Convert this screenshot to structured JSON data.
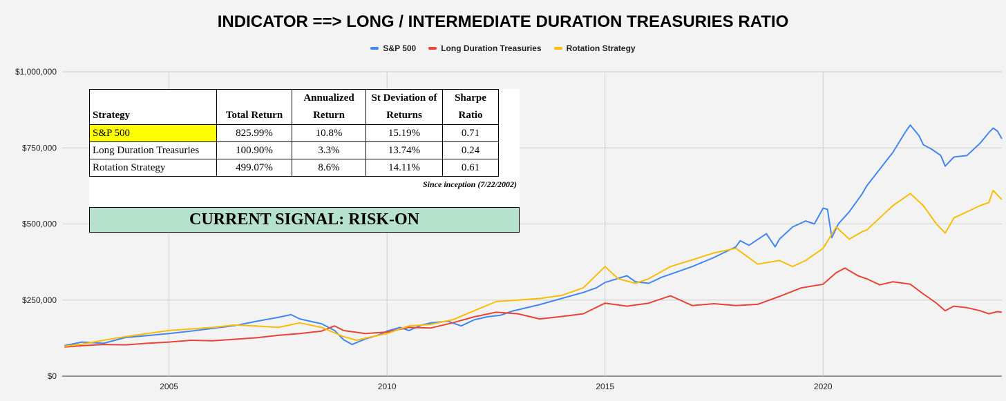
{
  "chart_data": {
    "type": "line",
    "title": "INDICATOR ==> LONG / INTERMEDIATE DURATION TREASURIES RATIO",
    "ylim": [
      0,
      1000000
    ],
    "xlim": [
      2002.55,
      2024.1
    ],
    "y_ticks": [
      0,
      250000,
      500000,
      750000,
      1000000
    ],
    "y_tick_labels": [
      "$0",
      "$250,000",
      "$500,000",
      "$750,000",
      "$1,000,000"
    ],
    "x_ticks": [
      2005,
      2010,
      2015,
      2020
    ],
    "x_tick_labels": [
      "2005",
      "2010",
      "2015",
      "2020"
    ],
    "grid": true,
    "legend_position": "top-center",
    "series": [
      {
        "name": "S&P 500",
        "color": "#4285f4",
        "points": [
          [
            2002.6,
            100000
          ],
          [
            2003.0,
            112000
          ],
          [
            2003.5,
            108000
          ],
          [
            2004.0,
            127000
          ],
          [
            2004.5,
            133000
          ],
          [
            2005.0,
            140000
          ],
          [
            2005.5,
            148000
          ],
          [
            2006.0,
            157000
          ],
          [
            2006.5,
            166000
          ],
          [
            2007.0,
            180000
          ],
          [
            2007.5,
            193000
          ],
          [
            2007.8,
            202000
          ],
          [
            2008.0,
            188000
          ],
          [
            2008.5,
            172000
          ],
          [
            2008.8,
            150000
          ],
          [
            2009.0,
            120000
          ],
          [
            2009.2,
            104000
          ],
          [
            2009.5,
            122000
          ],
          [
            2009.8,
            135000
          ],
          [
            2010.0,
            148000
          ],
          [
            2010.3,
            160000
          ],
          [
            2010.5,
            150000
          ],
          [
            2010.8,
            168000
          ],
          [
            2011.0,
            175000
          ],
          [
            2011.4,
            180000
          ],
          [
            2011.7,
            165000
          ],
          [
            2012.0,
            185000
          ],
          [
            2012.3,
            195000
          ],
          [
            2012.6,
            200000
          ],
          [
            2012.9,
            215000
          ],
          [
            2013.0,
            218000
          ],
          [
            2013.5,
            235000
          ],
          [
            2014.0,
            255000
          ],
          [
            2014.5,
            275000
          ],
          [
            2014.8,
            290000
          ],
          [
            2015.0,
            308000
          ],
          [
            2015.5,
            330000
          ],
          [
            2015.7,
            310000
          ],
          [
            2016.0,
            305000
          ],
          [
            2016.3,
            325000
          ],
          [
            2016.6,
            340000
          ],
          [
            2017.0,
            360000
          ],
          [
            2017.5,
            390000
          ],
          [
            2018.0,
            425000
          ],
          [
            2018.1,
            445000
          ],
          [
            2018.3,
            430000
          ],
          [
            2018.7,
            468000
          ],
          [
            2018.9,
            425000
          ],
          [
            2019.0,
            450000
          ],
          [
            2019.3,
            490000
          ],
          [
            2019.6,
            510000
          ],
          [
            2019.8,
            500000
          ],
          [
            2020.0,
            552000
          ],
          [
            2020.1,
            548000
          ],
          [
            2020.2,
            455000
          ],
          [
            2020.35,
            500000
          ],
          [
            2020.6,
            540000
          ],
          [
            2020.9,
            600000
          ],
          [
            2021.0,
            625000
          ],
          [
            2021.3,
            680000
          ],
          [
            2021.6,
            735000
          ],
          [
            2021.9,
            805000
          ],
          [
            2022.0,
            825000
          ],
          [
            2022.2,
            790000
          ],
          [
            2022.3,
            760000
          ],
          [
            2022.5,
            745000
          ],
          [
            2022.7,
            725000
          ],
          [
            2022.8,
            690000
          ],
          [
            2023.0,
            720000
          ],
          [
            2023.3,
            725000
          ],
          [
            2023.6,
            765000
          ],
          [
            2023.8,
            800000
          ],
          [
            2023.9,
            815000
          ],
          [
            2024.0,
            805000
          ],
          [
            2024.1,
            780000
          ]
        ]
      },
      {
        "name": "Long Duration Treasuries",
        "color": "#ea4335",
        "points": [
          [
            2002.6,
            96000
          ],
          [
            2003.0,
            100000
          ],
          [
            2003.5,
            104000
          ],
          [
            2004.0,
            103000
          ],
          [
            2004.5,
            108000
          ],
          [
            2005.0,
            112000
          ],
          [
            2005.5,
            118000
          ],
          [
            2006.0,
            116000
          ],
          [
            2006.5,
            121000
          ],
          [
            2007.0,
            126000
          ],
          [
            2007.5,
            134000
          ],
          [
            2008.0,
            140000
          ],
          [
            2008.5,
            148000
          ],
          [
            2008.8,
            165000
          ],
          [
            2009.0,
            150000
          ],
          [
            2009.5,
            140000
          ],
          [
            2010.0,
            145000
          ],
          [
            2010.5,
            160000
          ],
          [
            2011.0,
            158000
          ],
          [
            2011.5,
            175000
          ],
          [
            2012.0,
            195000
          ],
          [
            2012.5,
            210000
          ],
          [
            2013.0,
            205000
          ],
          [
            2013.5,
            188000
          ],
          [
            2014.0,
            196000
          ],
          [
            2014.5,
            205000
          ],
          [
            2015.0,
            240000
          ],
          [
            2015.5,
            230000
          ],
          [
            2016.0,
            240000
          ],
          [
            2016.5,
            264000
          ],
          [
            2017.0,
            232000
          ],
          [
            2017.5,
            238000
          ],
          [
            2018.0,
            232000
          ],
          [
            2018.5,
            236000
          ],
          [
            2019.0,
            262000
          ],
          [
            2019.5,
            290000
          ],
          [
            2020.0,
            302000
          ],
          [
            2020.3,
            340000
          ],
          [
            2020.5,
            355000
          ],
          [
            2020.8,
            330000
          ],
          [
            2021.0,
            320000
          ],
          [
            2021.3,
            300000
          ],
          [
            2021.6,
            310000
          ],
          [
            2022.0,
            302000
          ],
          [
            2022.3,
            270000
          ],
          [
            2022.6,
            240000
          ],
          [
            2022.8,
            215000
          ],
          [
            2023.0,
            230000
          ],
          [
            2023.3,
            225000
          ],
          [
            2023.6,
            215000
          ],
          [
            2023.8,
            205000
          ],
          [
            2024.0,
            212000
          ],
          [
            2024.1,
            210000
          ]
        ]
      },
      {
        "name": "Rotation Strategy",
        "color": "#fbbc04",
        "points": [
          [
            2002.6,
            98000
          ],
          [
            2003.0,
            105000
          ],
          [
            2003.5,
            118000
          ],
          [
            2004.0,
            130000
          ],
          [
            2004.5,
            140000
          ],
          [
            2005.0,
            150000
          ],
          [
            2005.5,
            155000
          ],
          [
            2006.0,
            160000
          ],
          [
            2006.5,
            168000
          ],
          [
            2007.0,
            165000
          ],
          [
            2007.5,
            160000
          ],
          [
            2008.0,
            175000
          ],
          [
            2008.5,
            160000
          ],
          [
            2009.0,
            130000
          ],
          [
            2009.3,
            118000
          ],
          [
            2009.6,
            128000
          ],
          [
            2010.0,
            140000
          ],
          [
            2010.5,
            165000
          ],
          [
            2011.0,
            170000
          ],
          [
            2011.5,
            185000
          ],
          [
            2012.0,
            215000
          ],
          [
            2012.5,
            245000
          ],
          [
            2013.0,
            250000
          ],
          [
            2013.5,
            255000
          ],
          [
            2014.0,
            265000
          ],
          [
            2014.5,
            290000
          ],
          [
            2015.0,
            360000
          ],
          [
            2015.3,
            320000
          ],
          [
            2015.7,
            305000
          ],
          [
            2016.0,
            320000
          ],
          [
            2016.5,
            360000
          ],
          [
            2017.0,
            382000
          ],
          [
            2017.5,
            405000
          ],
          [
            2018.0,
            420000
          ],
          [
            2018.5,
            368000
          ],
          [
            2019.0,
            380000
          ],
          [
            2019.3,
            360000
          ],
          [
            2019.6,
            380000
          ],
          [
            2020.0,
            420000
          ],
          [
            2020.3,
            490000
          ],
          [
            2020.6,
            450000
          ],
          [
            2020.9,
            475000
          ],
          [
            2021.0,
            480000
          ],
          [
            2021.3,
            520000
          ],
          [
            2021.6,
            560000
          ],
          [
            2021.9,
            590000
          ],
          [
            2022.0,
            600000
          ],
          [
            2022.3,
            560000
          ],
          [
            2022.6,
            500000
          ],
          [
            2022.8,
            470000
          ],
          [
            2023.0,
            520000
          ],
          [
            2023.3,
            540000
          ],
          [
            2023.6,
            560000
          ],
          [
            2023.8,
            570000
          ],
          [
            2023.9,
            610000
          ],
          [
            2024.0,
            595000
          ],
          [
            2024.1,
            580000
          ]
        ]
      }
    ]
  },
  "table": {
    "headers": [
      "Strategy",
      "Total Return",
      "Annualized Return",
      "St Deviation of Returns",
      "Sharpe Ratio"
    ],
    "rows": [
      [
        "S&P 500",
        "825.99%",
        "10.8%",
        "15.19%",
        "0.71"
      ],
      [
        "Long Duration Treasuries",
        "100.90%",
        "3.3%",
        "13.74%",
        "0.24"
      ],
      [
        "Rotation Strategy",
        "499.07%",
        "8.6%",
        "14.11%",
        "0.61"
      ]
    ],
    "highlight_color": "#ffff00",
    "note": "Since inception (7/22/2002)"
  },
  "signal": {
    "text": "CURRENT SIGNAL: RISK-ON",
    "color": "#b6e1cc"
  }
}
